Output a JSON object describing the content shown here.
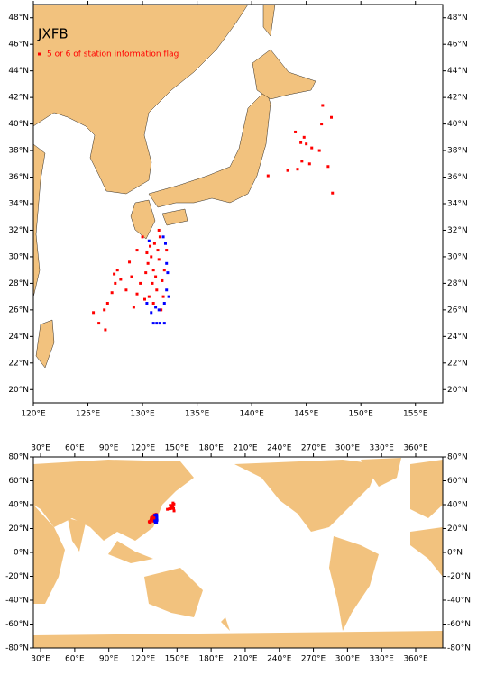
{
  "chart_data": [
    {
      "type": "scatter",
      "title": "JXFB",
      "xlim": [
        120,
        157.5
      ],
      "ylim": [
        19,
        49
      ],
      "xticks": [
        {
          "value": 120,
          "label": "120°E"
        },
        {
          "value": 125,
          "label": "125°E"
        },
        {
          "value": 130,
          "label": "130°E"
        },
        {
          "value": 135,
          "label": "135°E"
        },
        {
          "value": 140,
          "label": "140°E"
        },
        {
          "value": 145,
          "label": "145°E"
        },
        {
          "value": 150,
          "label": "150°E"
        },
        {
          "value": 155,
          "label": "155°E"
        }
      ],
      "yticks": [
        {
          "value": 20,
          "label": "20°N"
        },
        {
          "value": 22,
          "label": "22°N"
        },
        {
          "value": 24,
          "label": "24°N"
        },
        {
          "value": 26,
          "label": "26°N"
        },
        {
          "value": 28,
          "label": "28°N"
        },
        {
          "value": 30,
          "label": "30°N"
        },
        {
          "value": 32,
          "label": "32°N"
        },
        {
          "value": 34,
          "label": "34°N"
        },
        {
          "value": 36,
          "label": "36°N"
        },
        {
          "value": 38,
          "label": "38°N"
        },
        {
          "value": 40,
          "label": "40°N"
        },
        {
          "value": 42,
          "label": "42°N"
        },
        {
          "value": 44,
          "label": "44°N"
        },
        {
          "value": 46,
          "label": "46°N"
        },
        {
          "value": 48,
          "label": "48°N"
        }
      ],
      "series": [
        {
          "name": "5 or 6 of station information flag",
          "color": "#ff0000",
          "x": [
            130.5,
            130.8,
            131,
            131.2,
            130.9,
            131.4,
            131.1,
            130.7,
            131.5,
            131.3,
            130.6,
            131.8,
            132,
            131.6,
            130.3,
            129.8,
            129.5,
            130.2,
            131.9,
            132.2,
            130.4,
            131,
            129,
            128.5,
            127.5,
            127.2,
            126.8,
            126.5,
            125.5,
            126,
            127.7,
            128.8,
            129.5,
            130,
            131.5,
            128,
            127.4,
            126.6,
            129.2,
            131.7,
            143.3,
            144.2,
            144.5,
            144.8,
            145,
            144.6,
            145.3,
            145.5,
            144,
            146.4,
            146.5,
            147.3,
            146.2,
            147,
            147.4,
            141.5
          ],
          "values": [
            29.5,
            30,
            29,
            28.5,
            28,
            30.5,
            31,
            30.8,
            29.8,
            27.5,
            27,
            28.2,
            29,
            31.5,
            28.8,
            28,
            27.2,
            26.8,
            27,
            30.5,
            30.3,
            26.5,
            28.5,
            27.5,
            28,
            27.3,
            26.5,
            26,
            25.8,
            25,
            29,
            29.6,
            30.5,
            31.5,
            32,
            28.3,
            28.7,
            24.5,
            26.2,
            26,
            36.5,
            36.6,
            38.6,
            39,
            38.5,
            37.2,
            37,
            38.2,
            39.4,
            40,
            41.4,
            40.5,
            38,
            36.8,
            34.8,
            36.1
          ]
        },
        {
          "color": "#0000ff",
          "x": [
            131,
            131.3,
            131.6,
            132,
            131.5,
            132,
            132.2,
            132.3,
            132.1,
            131.9,
            130.4,
            130.8,
            132.4,
            131.2,
            132.2,
            130.6
          ],
          "values": [
            25,
            25,
            25,
            25,
            26,
            26.5,
            27.5,
            28.8,
            31,
            31.5,
            26.5,
            25.8,
            27,
            26.2,
            29.5,
            31.2
          ]
        }
      ]
    },
    {
      "type": "scatter",
      "xlim": [
        23.6,
        383.8
      ],
      "ylim": [
        -80,
        80
      ],
      "xticks": [
        {
          "value": 30,
          "label": "30°E"
        },
        {
          "value": 60,
          "label": "60°E"
        },
        {
          "value": 90,
          "label": "90°E"
        },
        {
          "value": 120,
          "label": "120°E"
        },
        {
          "value": 150,
          "label": "150°E"
        },
        {
          "value": 180,
          "label": "180°E"
        },
        {
          "value": 210,
          "label": "210°E"
        },
        {
          "value": 240,
          "label": "240°E"
        },
        {
          "value": 270,
          "label": "270°E"
        },
        {
          "value": 300,
          "label": "300°E"
        },
        {
          "value": 330,
          "label": "330°E"
        },
        {
          "value": 360,
          "label": "360°E"
        }
      ],
      "yticks": [
        {
          "value": -80,
          "label": "-80°N"
        },
        {
          "value": -60,
          "label": "-60°N"
        },
        {
          "value": -40,
          "label": "-40°N"
        },
        {
          "value": -20,
          "label": "-20°N"
        },
        {
          "value": 0,
          "label": "0°N"
        },
        {
          "value": 20,
          "label": "20°N"
        },
        {
          "value": 40,
          "label": "40°N"
        },
        {
          "value": 60,
          "label": "60°N"
        },
        {
          "value": 80,
          "label": "80°N"
        }
      ]
    }
  ]
}
